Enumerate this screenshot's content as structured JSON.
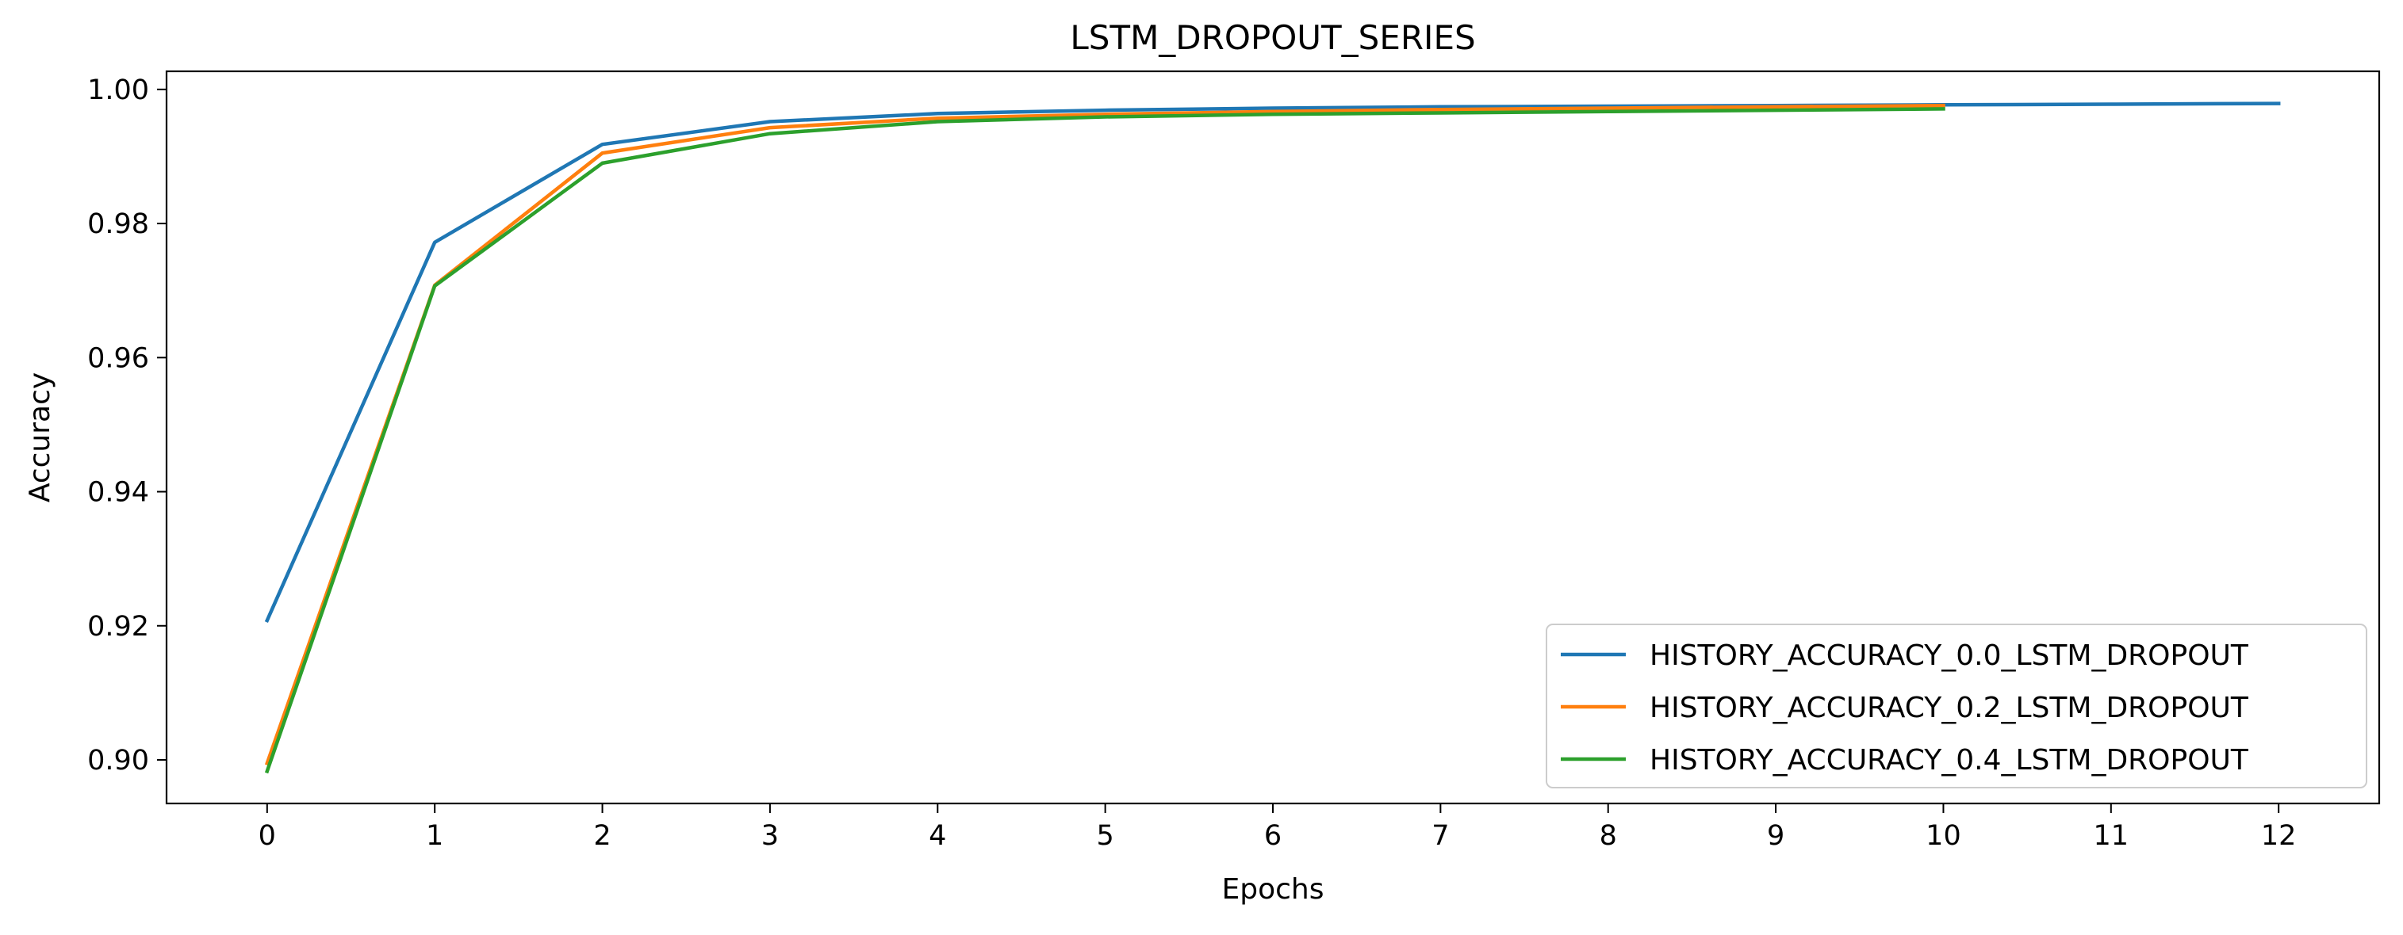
{
  "chart_data": {
    "type": "line",
    "title": "LSTM_DROPOUT_SERIES",
    "xlabel": "Epochs",
    "ylabel": "Accuracy",
    "xlim": [
      -0.6,
      12.6
    ],
    "ylim": [
      0.8935,
      1.0027
    ],
    "xticks": [
      0,
      1,
      2,
      3,
      4,
      5,
      6,
      7,
      8,
      9,
      10,
      11,
      12
    ],
    "xtick_labels": [
      "0",
      "1",
      "2",
      "3",
      "4",
      "5",
      "6",
      "7",
      "8",
      "9",
      "10",
      "11",
      "12"
    ],
    "yticks": [
      0.9,
      0.92,
      0.94,
      0.96,
      0.98,
      1.0
    ],
    "ytick_labels": [
      "0.90",
      "0.92",
      "0.94",
      "0.96",
      "0.98",
      "1.00"
    ],
    "grid": false,
    "legend_position": "lower-right",
    "series": [
      {
        "name": "HISTORY_ACCURACY_0.0_LSTM_DROPOUT",
        "color": "#1f77b4",
        "x": [
          0,
          1,
          2,
          3,
          4,
          5,
          6,
          7,
          8,
          9,
          10,
          11,
          12
        ],
        "y": [
          0.9208,
          0.9772,
          0.9918,
          0.9952,
          0.9964,
          0.9969,
          0.9972,
          0.9974,
          0.9975,
          0.9976,
          0.9977,
          0.9978,
          0.9979
        ]
      },
      {
        "name": "HISTORY_ACCURACY_0.2_LSTM_DROPOUT",
        "color": "#ff7f0e",
        "x": [
          0,
          1,
          2,
          3,
          4,
          5,
          6,
          7,
          8,
          9,
          10
        ],
        "y": [
          0.8995,
          0.9708,
          0.9905,
          0.9943,
          0.9957,
          0.9963,
          0.9967,
          0.997,
          0.9972,
          0.9974,
          0.9976
        ]
      },
      {
        "name": "HISTORY_ACCURACY_0.4_LSTM_DROPOUT",
        "color": "#2ca02c",
        "x": [
          0,
          1,
          2,
          3,
          4,
          5,
          6,
          7,
          8,
          9,
          10
        ],
        "y": [
          0.8983,
          0.9707,
          0.989,
          0.9934,
          0.9952,
          0.9959,
          0.9963,
          0.9965,
          0.9967,
          0.9969,
          0.9971
        ]
      }
    ]
  }
}
